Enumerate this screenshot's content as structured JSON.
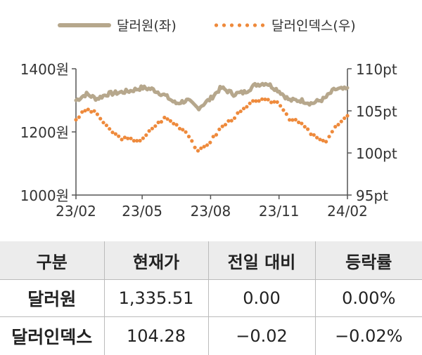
{
  "legend": {
    "krw_label": "달러원(좌)",
    "dxy_label": "달러인덱스(우)"
  },
  "colors": {
    "krw": "#b6a78c",
    "dxy": "#ee8a3c",
    "axis": "#555555",
    "table_header_bg": "#ececec"
  },
  "chart_data": {
    "type": "line",
    "x_ticks": [
      "23/02",
      "23/05",
      "23/08",
      "23/11",
      "24/02"
    ],
    "left_axis": {
      "ticks": [
        "1400원",
        "1200원",
        "1000원"
      ],
      "range": [
        1000,
        1400
      ]
    },
    "right_axis": {
      "ticks": [
        "110pt",
        "105pt",
        "100pt",
        "95pt"
      ],
      "range": [
        95,
        110
      ]
    },
    "series": [
      {
        "name": "달러원(좌)",
        "axis": "left",
        "style": "line",
        "x": [
          "2023-02-01",
          "2023-02-15",
          "2023-03-01",
          "2023-03-15",
          "2023-04-01",
          "2023-04-15",
          "2023-05-01",
          "2023-05-15",
          "2023-06-01",
          "2023-06-15",
          "2023-07-01",
          "2023-07-15",
          "2023-08-01",
          "2023-08-15",
          "2023-09-01",
          "2023-09-15",
          "2023-10-01",
          "2023-10-15",
          "2023-11-01",
          "2023-11-15",
          "2023-12-01",
          "2023-12-15",
          "2024-01-01",
          "2024-01-15",
          "2024-02-01"
        ],
        "values": [
          1300,
          1320,
          1305,
          1320,
          1325,
          1330,
          1340,
          1335,
          1315,
          1290,
          1300,
          1275,
          1305,
          1340,
          1320,
          1325,
          1350,
          1355,
          1330,
          1300,
          1300,
          1290,
          1305,
          1335,
          1335
        ]
      },
      {
        "name": "달러인덱스(우)",
        "axis": "right",
        "style": "dotted",
        "x": [
          "2023-02-01",
          "2023-02-15",
          "2023-03-01",
          "2023-03-15",
          "2023-04-01",
          "2023-04-15",
          "2023-05-01",
          "2023-05-15",
          "2023-06-01",
          "2023-06-15",
          "2023-07-01",
          "2023-07-15",
          "2023-08-01",
          "2023-08-15",
          "2023-09-01",
          "2023-09-15",
          "2023-10-01",
          "2023-10-15",
          "2023-11-01",
          "2023-11-15",
          "2023-12-01",
          "2023-12-15",
          "2024-01-01",
          "2024-01-15",
          "2024-02-01"
        ],
        "values": [
          104.0,
          105.2,
          104.7,
          103.0,
          101.8,
          101.6,
          101.5,
          103.0,
          104.2,
          103.4,
          102.4,
          100.1,
          101.4,
          103.0,
          104.2,
          105.2,
          106.3,
          106.2,
          106.0,
          104.1,
          103.5,
          102.2,
          101.2,
          103.0,
          104.3
        ]
      }
    ]
  },
  "table": {
    "headers": [
      "구분",
      "현재가",
      "전일 대비",
      "등락률"
    ],
    "rows": [
      {
        "name": "달러원",
        "price": "1,335.51",
        "change": "0.00",
        "rate": "0.00%"
      },
      {
        "name": "달러인덱스",
        "price": "104.28",
        "change": "−0.02",
        "rate": "−0.02%"
      }
    ]
  }
}
